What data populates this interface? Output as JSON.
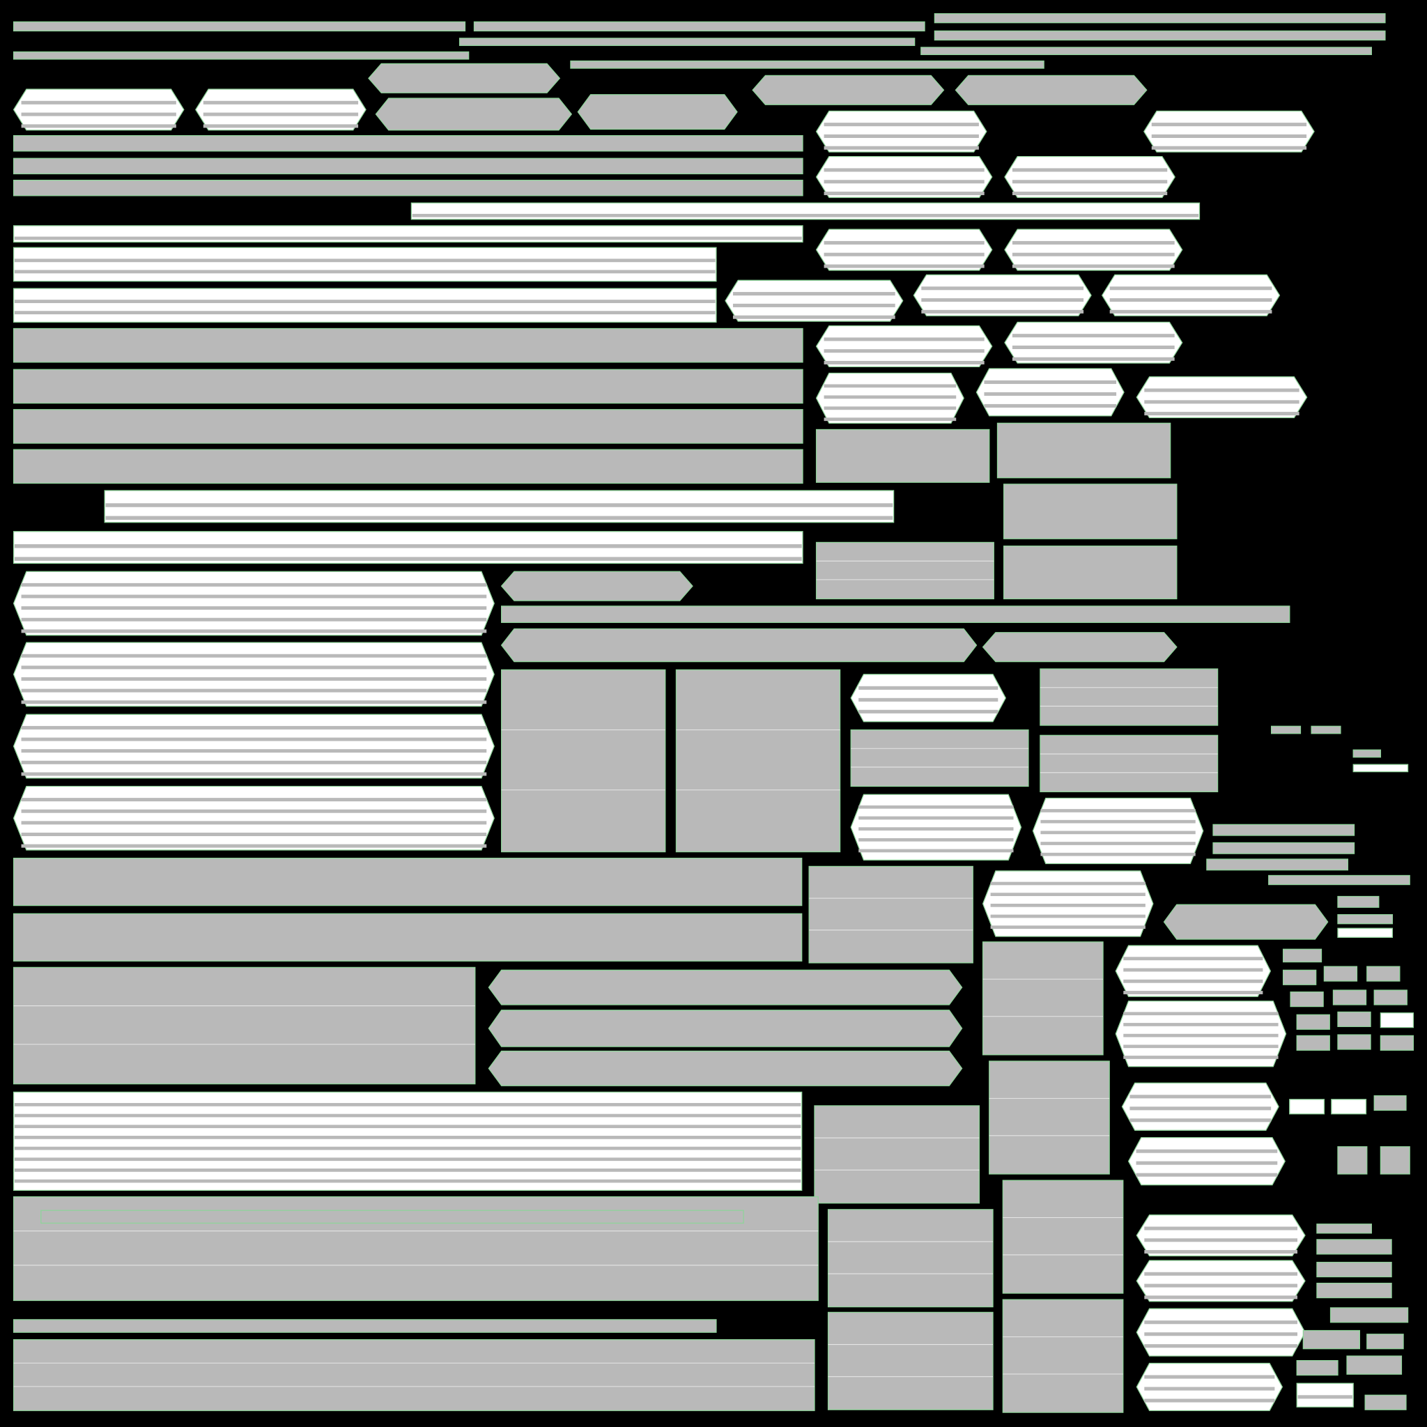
{
  "colors": {
    "background": "#000000",
    "island_fill": "#b9b9b9",
    "island_light": "#ffffff",
    "island_edge": "#8fd39a",
    "wire": "#e6e6e6"
  }
}
